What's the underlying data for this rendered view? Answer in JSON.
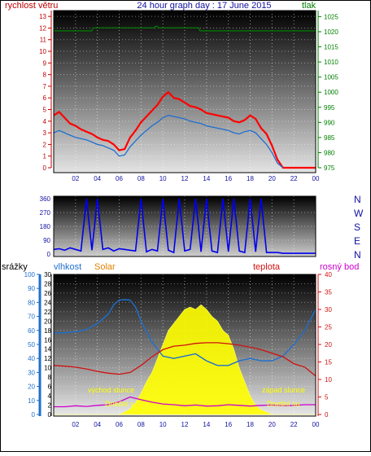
{
  "chart_data": [
    {
      "type": "line",
      "title": "24 hour graph day : 17 June 2015",
      "ylabel_left": "rychlost větru",
      "ylabel_right": "tlak",
      "x_ticks": [
        "02",
        "04",
        "06",
        "08",
        "10",
        "12",
        "14",
        "16",
        "18",
        "20",
        "22",
        "00"
      ],
      "y_left_ticks": [
        "0",
        "1",
        "2",
        "3",
        "4",
        "5",
        "6",
        "7",
        "8",
        "9",
        "10",
        "11",
        "12",
        "13"
      ],
      "y_right_ticks": [
        "975",
        "980",
        "985",
        "990",
        "995",
        "1000",
        "1005",
        "1010",
        "1015",
        "1020",
        "1025"
      ],
      "ylim_left": [
        0,
        13.5
      ],
      "ylim_right": [
        975,
        1027
      ],
      "colors": {
        "wind_gust": "#ff0000",
        "wind_avg": "#1e6fd0",
        "pressure": "#008000",
        "title": "#1010a0",
        "left_axis": "#c00000",
        "right_axis": "#008000"
      },
      "series": [
        {
          "key": "wind_gust",
          "x": [
            0,
            0.5,
            1,
            1.5,
            2,
            2.5,
            3,
            3.5,
            4,
            4.5,
            5,
            5.5,
            6,
            6.5,
            7,
            7.5,
            8,
            8.5,
            9,
            9.5,
            10,
            10.5,
            11,
            11.5,
            12,
            12.5,
            13,
            13.5,
            14,
            14.5,
            15,
            15.5,
            16,
            16.5,
            17,
            17.5,
            18,
            18.5,
            19,
            19.5,
            20,
            20.5,
            21,
            21.5,
            22,
            22.5,
            23,
            23.5,
            24
          ],
          "values": [
            4.5,
            4.8,
            4.3,
            3.8,
            3.6,
            3.3,
            3.1,
            2.9,
            2.6,
            2.4,
            2.3,
            2.0,
            1.5,
            1.6,
            2.6,
            3.2,
            3.9,
            4.4,
            4.9,
            5.4,
            6.1,
            6.5,
            6.0,
            5.9,
            5.6,
            5.3,
            5.2,
            5.0,
            4.7,
            4.6,
            4.5,
            4.4,
            4.3,
            4.0,
            3.9,
            4.1,
            4.5,
            4.2,
            3.4,
            2.9,
            1.9,
            0.7,
            0,
            0,
            0,
            0,
            0,
            0,
            0
          ]
        },
        {
          "key": "wind_avg",
          "x": [
            0,
            0.5,
            1,
            1.5,
            2,
            2.5,
            3,
            3.5,
            4,
            4.5,
            5,
            5.5,
            6,
            6.5,
            7,
            7.5,
            8,
            8.5,
            9,
            9.5,
            10,
            10.5,
            11,
            11.5,
            12,
            12.5,
            13,
            13.5,
            14,
            14.5,
            15,
            15.5,
            16,
            16.5,
            17,
            17.5,
            18,
            18.5,
            19,
            19.5,
            20,
            20.5,
            21
          ],
          "values": [
            3.0,
            3.2,
            3.0,
            2.8,
            2.6,
            2.5,
            2.4,
            2.2,
            2.0,
            1.9,
            1.7,
            1.5,
            1.0,
            1.1,
            1.8,
            2.3,
            2.8,
            3.2,
            3.6,
            3.9,
            4.3,
            4.5,
            4.4,
            4.3,
            4.2,
            4.0,
            3.9,
            3.8,
            3.6,
            3.5,
            3.4,
            3.3,
            3.2,
            3.0,
            2.9,
            3.1,
            3.2,
            3.0,
            2.5,
            2.0,
            1.3,
            0.4,
            0
          ]
        },
        {
          "key": "pressure",
          "x": [
            0,
            3.5,
            3.6,
            9.2,
            9.3,
            9.5,
            9.6,
            13.3,
            13.4,
            24
          ],
          "values": [
            1020.3,
            1020.3,
            1021.3,
            1021.3,
            1021.8,
            1021.8,
            1021.3,
            1021.3,
            1020.3,
            1020.3
          ]
        }
      ]
    },
    {
      "type": "scatter",
      "ylabel_right": "",
      "x_ticks": [],
      "y_left_ticks": [
        "0",
        "90",
        "180",
        "270",
        "360"
      ],
      "y_right_ticks": [
        "N",
        "E",
        "S",
        "W",
        "N"
      ],
      "ylim": [
        0,
        360
      ],
      "colors": {
        "direction": "#0000ee"
      },
      "series": [
        {
          "key": "wind_direction",
          "x": [
            0,
            0.5,
            1,
            1.5,
            2,
            2.5,
            3,
            3.5,
            4,
            4.5,
            5,
            5.5,
            6,
            6.5,
            7,
            7.5,
            8,
            8.5,
            9,
            9.5,
            10,
            10.5,
            11,
            11.5,
            12,
            12.5,
            13,
            13.5,
            14,
            14.5,
            15,
            15.5,
            16,
            16.5,
            17,
            17.5,
            18,
            18.5,
            19,
            19.5,
            20,
            20.5,
            21,
            21.5,
            22,
            22.5,
            23,
            23.5,
            24
          ],
          "values": [
            30,
            35,
            25,
            40,
            30,
            20,
            360,
            25,
            360,
            30,
            40,
            20,
            35,
            30,
            25,
            20,
            360,
            15,
            30,
            20,
            360,
            25,
            10,
            360,
            20,
            30,
            360,
            15,
            360,
            20,
            10,
            360,
            15,
            360,
            20,
            10,
            360,
            15,
            360,
            10,
            10,
            10,
            5,
            5,
            5,
            5,
            5,
            5,
            5
          ]
        }
      ]
    },
    {
      "type": "line",
      "ylabel_outer_left": "srážky",
      "ylabel_left": "vlhkost",
      "ylabel_solar": "Solar",
      "ylabel_temp": "teplota",
      "ylabel_dew": "rosný bod",
      "x_ticks": [
        "02",
        "04",
        "06",
        "08",
        "10",
        "12",
        "14",
        "16",
        "18",
        "20",
        "22",
        "00"
      ],
      "y_rain_ticks": [
        "0",
        "10",
        "20",
        "30",
        "40",
        "50",
        "60",
        "70",
        "80",
        "90",
        "100"
      ],
      "y_left_ticks": [
        "0",
        "2",
        "4",
        "6",
        "8",
        "10",
        "12",
        "14",
        "16",
        "18",
        "20",
        "22",
        "24",
        "26",
        "28",
        "30"
      ],
      "y_right_ticks": [
        "0",
        "5",
        "10",
        "15",
        "20",
        "25",
        "30",
        "35",
        "40"
      ],
      "ylim_left": [
        0,
        30
      ],
      "ylim_right": [
        0,
        40
      ],
      "annotations": [
        "východ slunce",
        "západ slunce",
        "Dnešní s",
        "Dnešní su"
      ],
      "colors": {
        "humidity": "#1e6fd0",
        "solar": "#ffff00",
        "temperature": "#d01010",
        "dew_point": "#cc00cc",
        "rain_axis": "#1e6fd0",
        "temp_axis": "#d01010",
        "dew_label": "#cc00cc",
        "solar_label": "#e08000"
      },
      "series": [
        {
          "key": "humidity",
          "x": [
            0,
            1,
            2,
            3,
            4,
            5,
            5.5,
            6,
            6.5,
            7,
            7.5,
            8,
            9,
            10,
            11,
            12,
            13,
            14,
            15,
            16,
            17,
            18,
            19,
            20,
            21,
            22,
            23,
            24
          ],
          "values": [
            17.5,
            17.5,
            17.7,
            18.2,
            19.5,
            21.5,
            23.5,
            24.5,
            24.6,
            24.5,
            23.0,
            20.0,
            15.5,
            12.5,
            12.0,
            12.5,
            13.0,
            11.5,
            10.5,
            10.5,
            11.5,
            12.0,
            11.5,
            11.5,
            12.5,
            15.0,
            18.0,
            22.5
          ]
        },
        {
          "key": "solar",
          "x": [
            0,
            6,
            6.5,
            7,
            7.5,
            8,
            8.5,
            9,
            9.5,
            10,
            10.5,
            11,
            11.5,
            12,
            12.5,
            13,
            13.5,
            14,
            14.5,
            15,
            15.5,
            16,
            16.5,
            17,
            17.5,
            18,
            18.5,
            19,
            20,
            24
          ],
          "values": [
            0,
            0,
            0.5,
            1.2,
            2.5,
            4.5,
            7,
            9,
            12,
            15,
            18,
            19.5,
            21,
            22.5,
            23,
            22.5,
            23.5,
            22.5,
            21,
            20,
            18,
            17,
            14,
            10,
            7,
            4,
            2,
            1,
            0,
            0
          ]
        },
        {
          "key": "temperature",
          "x": [
            0,
            1,
            2,
            3,
            4,
            5,
            6,
            7,
            8,
            9,
            10,
            11,
            12,
            13,
            14,
            15,
            16,
            17,
            18,
            19,
            20,
            21,
            22,
            23,
            24
          ],
          "values": [
            14,
            13.8,
            13.5,
            13,
            12.3,
            11.8,
            11.5,
            12,
            14,
            16.5,
            18.5,
            19.5,
            19.8,
            20.3,
            20.5,
            20.5,
            20.2,
            19.8,
            19.2,
            18.5,
            17.5,
            16.5,
            14.5,
            13.5,
            11
          ]
        },
        {
          "key": "dew_point",
          "x": [
            0,
            1,
            2,
            3,
            4,
            5,
            6,
            7,
            8,
            9,
            10,
            11,
            12,
            13,
            14,
            15,
            16,
            17,
            18,
            19,
            20,
            21,
            22,
            23,
            24
          ],
          "values": [
            2.2,
            2.2,
            2.5,
            2.3,
            2.6,
            2.8,
            3.6,
            5.0,
            4.2,
            3.5,
            3.0,
            2.8,
            2.5,
            2.7,
            2.4,
            2.5,
            2.8,
            2.6,
            2.4,
            2.6,
            2.7,
            2.5,
            2.6,
            2.8,
            2.8
          ]
        }
      ]
    }
  ]
}
